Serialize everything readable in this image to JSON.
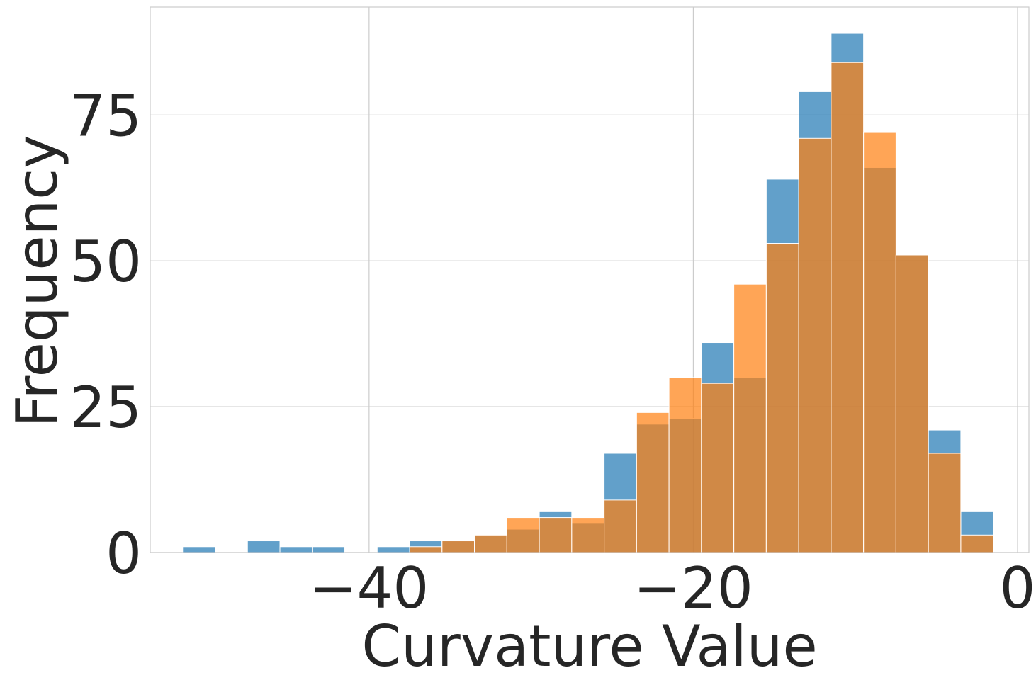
{
  "chart_data": {
    "type": "histogram",
    "xlabel": "Curvature Value",
    "ylabel": "Frequency",
    "xlim": [
      -53.5,
      0.7
    ],
    "ylim": [
      0,
      93.5
    ],
    "xticks": [
      -40,
      -20,
      0
    ],
    "xtick_labels": [
      "−40",
      "−20",
      "0"
    ],
    "yticks": [
      0,
      25,
      50,
      75
    ],
    "ytick_labels": [
      "0",
      "25",
      "50",
      "75"
    ],
    "grid": true,
    "legend": "none",
    "bin_width": 2,
    "series": [
      {
        "color": "#1f77b4",
        "opacity": 0.7,
        "bins": [
          {
            "x0": -51.5,
            "x1": -49.5,
            "count": 1
          },
          {
            "x0": -47.5,
            "x1": -45.5,
            "count": 2
          },
          {
            "x0": -45.5,
            "x1": -43.5,
            "count": 1
          },
          {
            "x0": -43.5,
            "x1": -41.5,
            "count": 1
          },
          {
            "x0": -39.5,
            "x1": -37.5,
            "count": 1
          },
          {
            "x0": -37.5,
            "x1": -35.5,
            "count": 2
          },
          {
            "x0": -35.5,
            "x1": -33.5,
            "count": 2
          },
          {
            "x0": -33.5,
            "x1": -31.5,
            "count": 3
          },
          {
            "x0": -31.5,
            "x1": -29.5,
            "count": 4
          },
          {
            "x0": -29.5,
            "x1": -27.5,
            "count": 7
          },
          {
            "x0": -27.5,
            "x1": -25.5,
            "count": 5
          },
          {
            "x0": -25.5,
            "x1": -23.5,
            "count": 17
          },
          {
            "x0": -23.5,
            "x1": -21.5,
            "count": 22
          },
          {
            "x0": -21.5,
            "x1": -19.5,
            "count": 23
          },
          {
            "x0": -19.5,
            "x1": -17.5,
            "count": 36
          },
          {
            "x0": -17.5,
            "x1": -15.5,
            "count": 30
          },
          {
            "x0": -15.5,
            "x1": -13.5,
            "count": 64
          },
          {
            "x0": -13.5,
            "x1": -11.5,
            "count": 79
          },
          {
            "x0": -11.5,
            "x1": -9.5,
            "count": 89
          },
          {
            "x0": -9.5,
            "x1": -7.5,
            "count": 66
          },
          {
            "x0": -7.5,
            "x1": -5.5,
            "count": 51
          },
          {
            "x0": -5.5,
            "x1": -3.5,
            "count": 21
          },
          {
            "x0": -3.5,
            "x1": -1.5,
            "count": 7
          }
        ]
      },
      {
        "color": "#ff7f0e",
        "opacity": 0.7,
        "bins": [
          {
            "x0": -37.5,
            "x1": -35.5,
            "count": 1
          },
          {
            "x0": -35.5,
            "x1": -33.5,
            "count": 2
          },
          {
            "x0": -33.5,
            "x1": -31.5,
            "count": 3
          },
          {
            "x0": -31.5,
            "x1": -29.5,
            "count": 6
          },
          {
            "x0": -29.5,
            "x1": -27.5,
            "count": 6
          },
          {
            "x0": -27.5,
            "x1": -25.5,
            "count": 6
          },
          {
            "x0": -25.5,
            "x1": -23.5,
            "count": 9
          },
          {
            "x0": -23.5,
            "x1": -21.5,
            "count": 24
          },
          {
            "x0": -21.5,
            "x1": -19.5,
            "count": 30
          },
          {
            "x0": -19.5,
            "x1": -17.5,
            "count": 29
          },
          {
            "x0": -17.5,
            "x1": -15.5,
            "count": 46
          },
          {
            "x0": -15.5,
            "x1": -13.5,
            "count": 53
          },
          {
            "x0": -13.5,
            "x1": -11.5,
            "count": 71
          },
          {
            "x0": -11.5,
            "x1": -9.5,
            "count": 84
          },
          {
            "x0": -9.5,
            "x1": -7.5,
            "count": 72
          },
          {
            "x0": -7.5,
            "x1": -5.5,
            "count": 51
          },
          {
            "x0": -5.5,
            "x1": -3.5,
            "count": 17
          },
          {
            "x0": -3.5,
            "x1": -1.5,
            "count": 3
          }
        ]
      }
    ]
  }
}
